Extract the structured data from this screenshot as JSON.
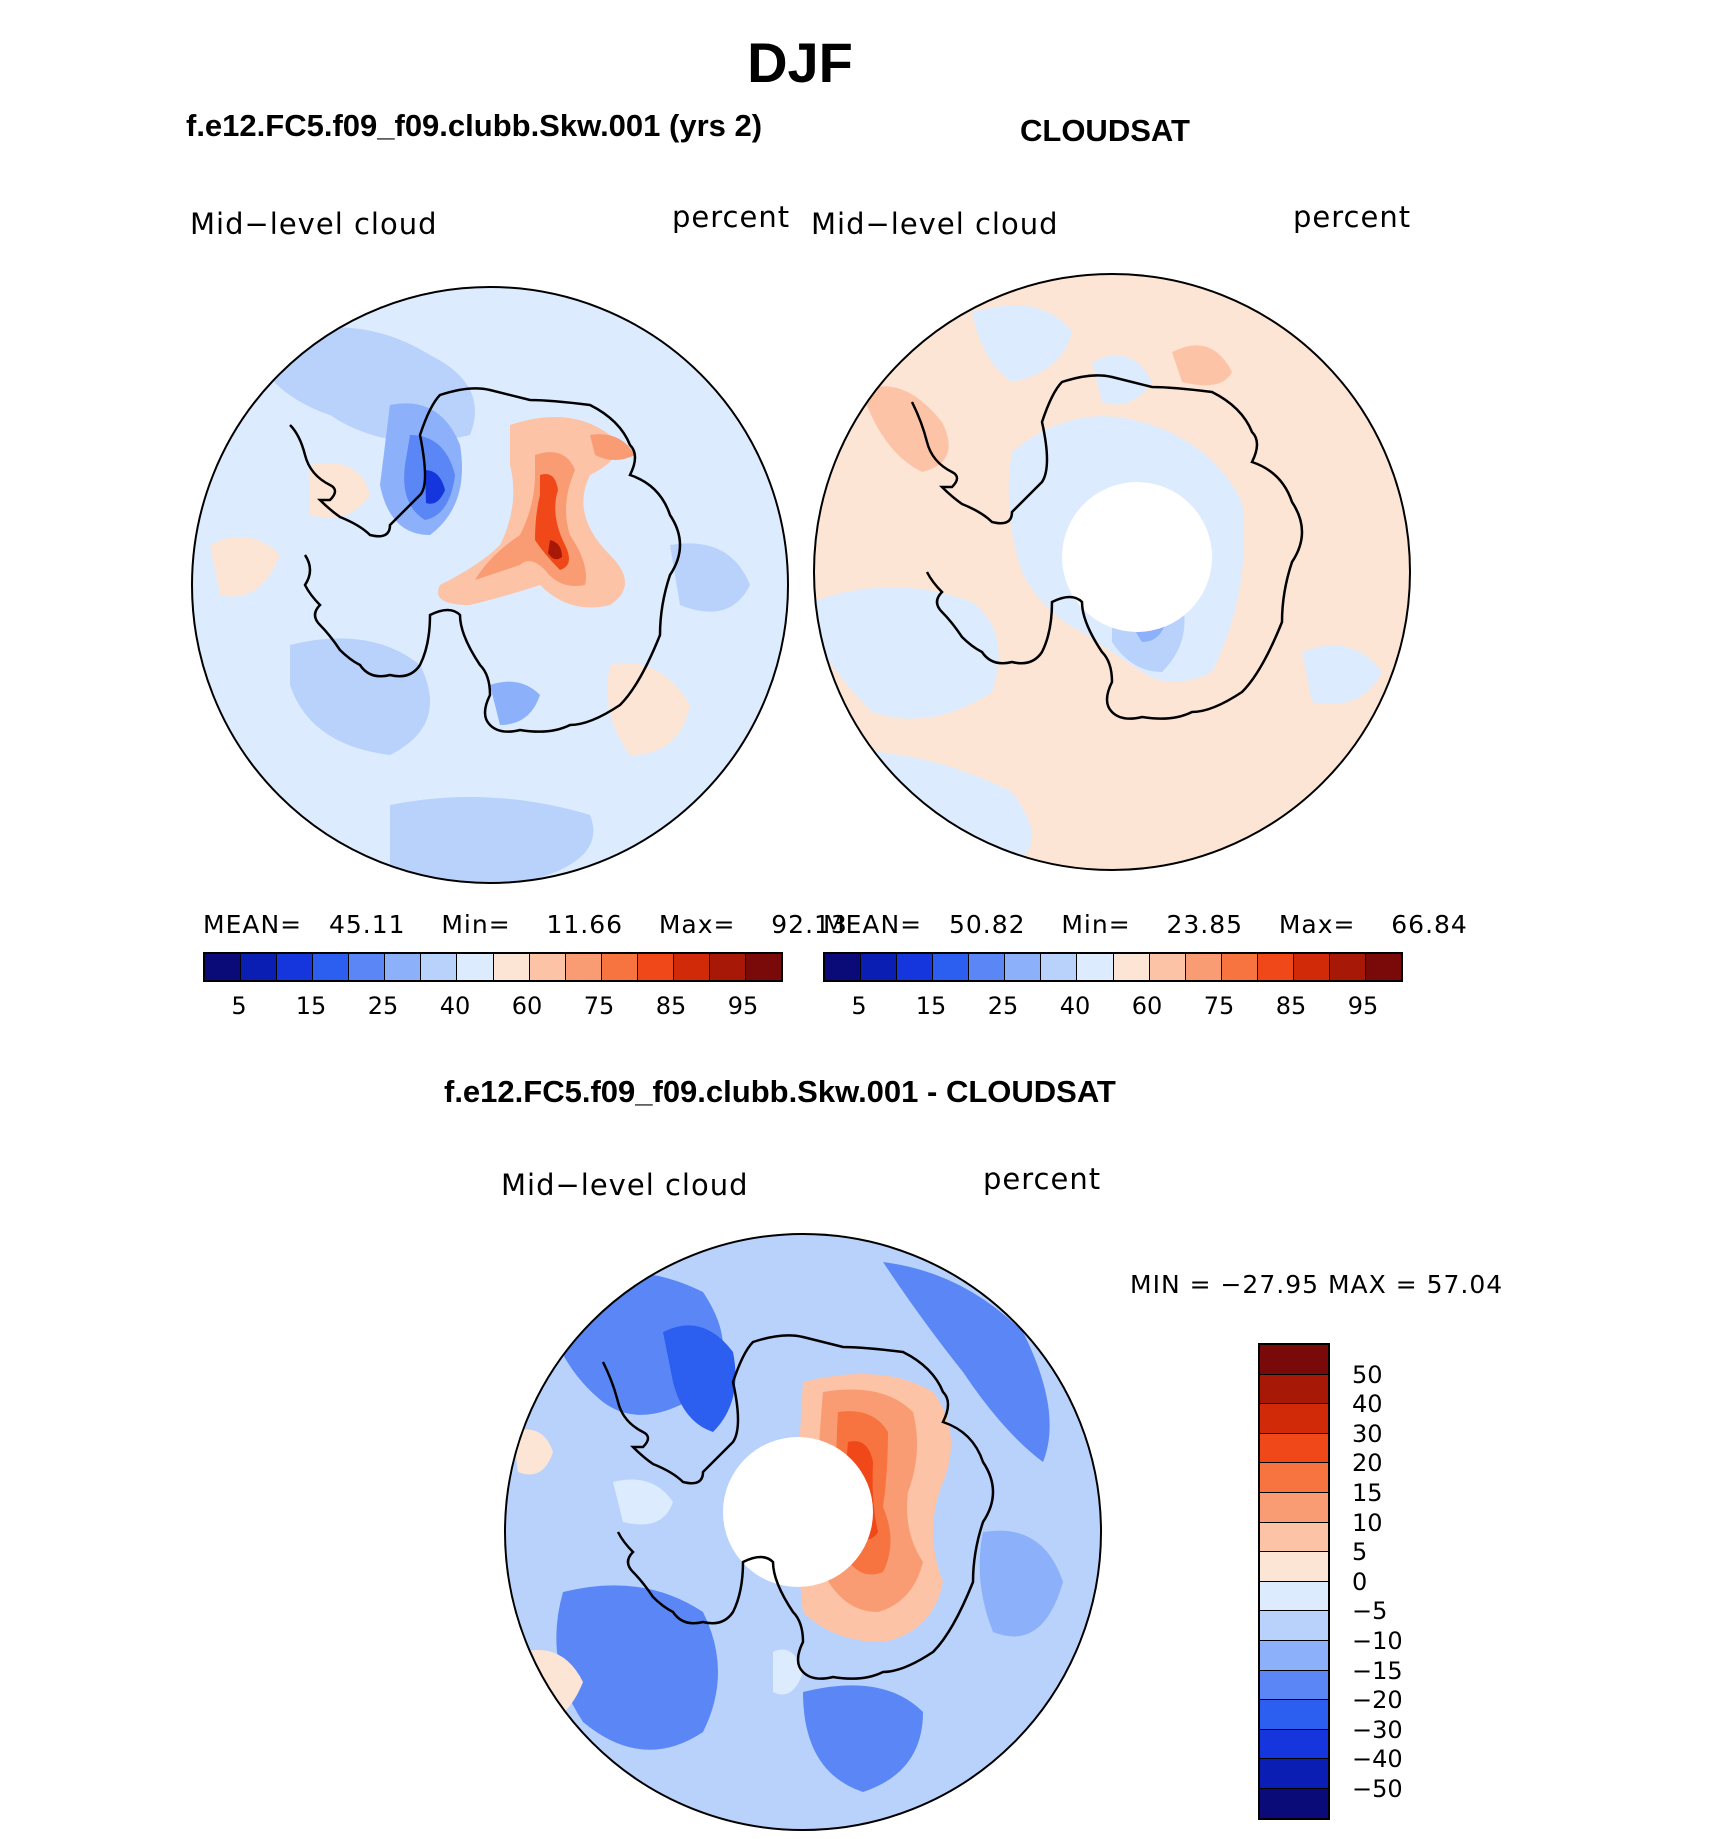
{
  "figure": {
    "title": "DJF",
    "colors": [
      "#0a0a78",
      "#0a1eb4",
      "#1436dc",
      "#2c5ff0",
      "#5a87f5",
      "#8cb0fa",
      "#b9d2fc",
      "#dcebfd",
      "#fde5d5",
      "#fcc3a7",
      "#f99c73",
      "#f7733f",
      "#f04818",
      "#d02a08",
      "#a81806",
      "#7a0a0a"
    ]
  },
  "panel_model": {
    "title": "f.e12.FC5.f09_f09.clubb.Skw.001 (yrs 2)",
    "left_label": "Mid−level cloud",
    "right_label": "percent",
    "stats": {
      "mean_label": "MEAN=",
      "mean": "45.11",
      "min_label": "Min=",
      "min": "11.66",
      "max_label": "Max=",
      "max": "92.13"
    },
    "colorbar_labels": [
      "5",
      "15",
      "25",
      "40",
      "60",
      "75",
      "85",
      "95"
    ]
  },
  "panel_obs": {
    "title": "CLOUDSAT",
    "left_label": "Mid−level cloud",
    "right_label": "percent",
    "stats": {
      "mean_label": "MEAN=",
      "mean": "50.82",
      "min_label": "Min=",
      "min": "23.85",
      "max_label": "Max=",
      "max": "66.84"
    },
    "colorbar_labels": [
      "5",
      "15",
      "25",
      "40",
      "60",
      "75",
      "85",
      "95"
    ]
  },
  "panel_diff": {
    "title": "f.e12.FC5.f09_f09.clubb.Skw.001 - CLOUDSAT",
    "left_label": "Mid−level cloud",
    "right_label": "percent",
    "minmax": "MIN = −27.95 MAX =   57.04",
    "colorbar_labels": [
      "50",
      "40",
      "30",
      "20",
      "15",
      "10",
      "5",
      "0",
      "−5",
      "−10",
      "−15",
      "−20",
      "−30",
      "−40",
      "−50"
    ]
  }
}
